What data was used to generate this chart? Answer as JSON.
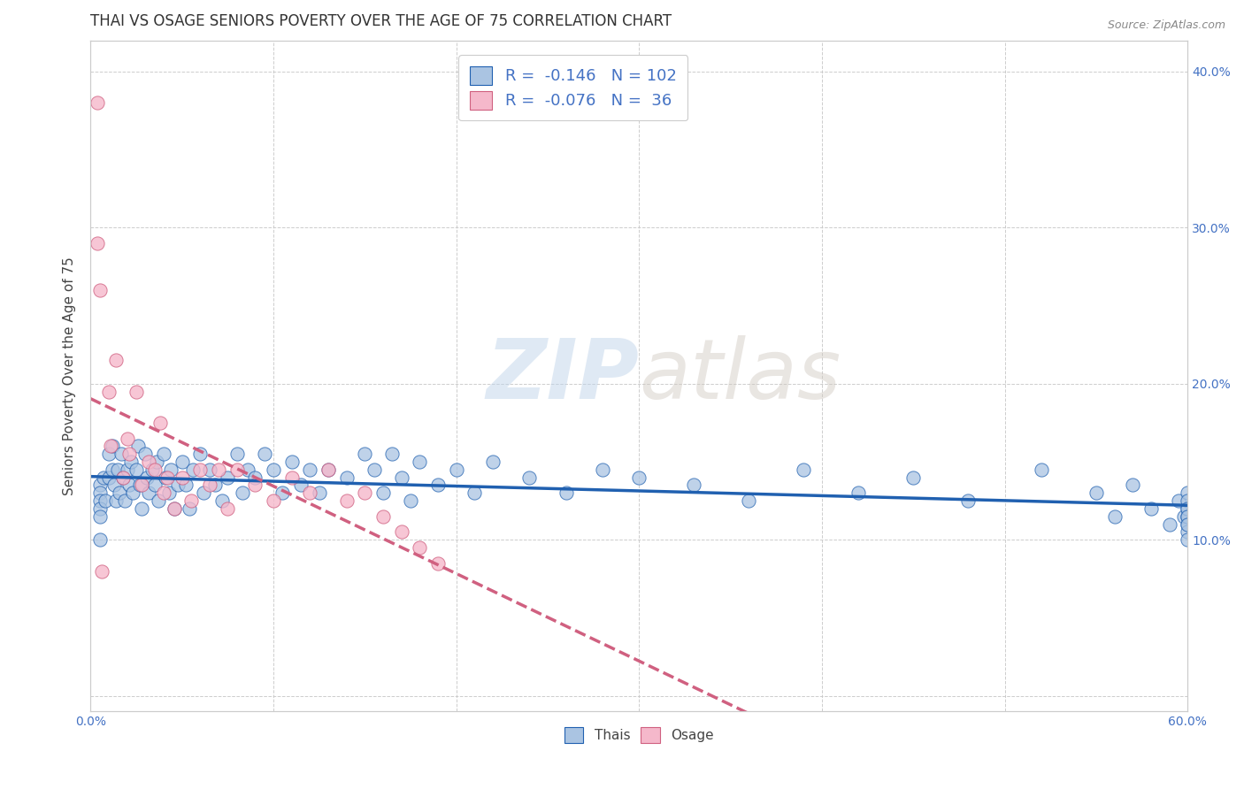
{
  "title": "THAI VS OSAGE SENIORS POVERTY OVER THE AGE OF 75 CORRELATION CHART",
  "source": "Source: ZipAtlas.com",
  "ylabel": "Seniors Poverty Over the Age of 75",
  "xlabel": "",
  "xlim": [
    0.0,
    0.6
  ],
  "ylim": [
    -0.01,
    0.42
  ],
  "xticks": [
    0.0,
    0.1,
    0.2,
    0.3,
    0.4,
    0.5,
    0.6
  ],
  "yticks": [
    0.0,
    0.1,
    0.2,
    0.3,
    0.4
  ],
  "xtick_labels": [
    "0.0%",
    "",
    "",
    "",
    "",
    "",
    "60.0%"
  ],
  "right_ytick_labels": [
    "10.0%",
    "20.0%",
    "30.0%",
    "40.0%"
  ],
  "right_yticks": [
    0.1,
    0.2,
    0.3,
    0.4
  ],
  "thai_R": "-0.146",
  "thai_N": "102",
  "osage_R": "-0.076",
  "osage_N": "36",
  "thai_color": "#aac4e2",
  "osage_color": "#f5b8cb",
  "thai_line_color": "#2060b0",
  "osage_line_color": "#d06080",
  "legend_label_thai": "Thais",
  "legend_label_osage": "Osage",
  "watermark_zip": "ZIP",
  "watermark_atlas": "atlas",
  "background_color": "#ffffff",
  "grid_color": "#c8c8c8",
  "title_fontsize": 12,
  "label_fontsize": 11,
  "tick_fontsize": 10,
  "thai_x": [
    0.005,
    0.005,
    0.005,
    0.005,
    0.005,
    0.005,
    0.007,
    0.008,
    0.01,
    0.01,
    0.012,
    0.012,
    0.013,
    0.014,
    0.015,
    0.016,
    0.017,
    0.018,
    0.019,
    0.02,
    0.021,
    0.022,
    0.023,
    0.025,
    0.026,
    0.027,
    0.028,
    0.03,
    0.031,
    0.032,
    0.034,
    0.035,
    0.036,
    0.037,
    0.04,
    0.041,
    0.043,
    0.044,
    0.046,
    0.048,
    0.05,
    0.052,
    0.054,
    0.056,
    0.06,
    0.062,
    0.065,
    0.068,
    0.072,
    0.075,
    0.08,
    0.083,
    0.086,
    0.09,
    0.095,
    0.1,
    0.105,
    0.11,
    0.115,
    0.12,
    0.125,
    0.13,
    0.14,
    0.15,
    0.155,
    0.16,
    0.165,
    0.17,
    0.175,
    0.18,
    0.19,
    0.2,
    0.21,
    0.22,
    0.24,
    0.26,
    0.28,
    0.3,
    0.33,
    0.36,
    0.39,
    0.42,
    0.45,
    0.48,
    0.52,
    0.55,
    0.56,
    0.57,
    0.58,
    0.59,
    0.595,
    0.598,
    0.6,
    0.6,
    0.6,
    0.6,
    0.6,
    0.6,
    0.6,
    0.6,
    0.6,
    0.6
  ],
  "thai_y": [
    0.135,
    0.13,
    0.125,
    0.12,
    0.115,
    0.1,
    0.14,
    0.125,
    0.155,
    0.14,
    0.16,
    0.145,
    0.135,
    0.125,
    0.145,
    0.13,
    0.155,
    0.14,
    0.125,
    0.145,
    0.135,
    0.15,
    0.13,
    0.145,
    0.16,
    0.135,
    0.12,
    0.155,
    0.14,
    0.13,
    0.145,
    0.135,
    0.15,
    0.125,
    0.155,
    0.14,
    0.13,
    0.145,
    0.12,
    0.135,
    0.15,
    0.135,
    0.12,
    0.145,
    0.155,
    0.13,
    0.145,
    0.135,
    0.125,
    0.14,
    0.155,
    0.13,
    0.145,
    0.14,
    0.155,
    0.145,
    0.13,
    0.15,
    0.135,
    0.145,
    0.13,
    0.145,
    0.14,
    0.155,
    0.145,
    0.13,
    0.155,
    0.14,
    0.125,
    0.15,
    0.135,
    0.145,
    0.13,
    0.15,
    0.14,
    0.13,
    0.145,
    0.14,
    0.135,
    0.125,
    0.145,
    0.13,
    0.14,
    0.125,
    0.145,
    0.13,
    0.115,
    0.135,
    0.12,
    0.11,
    0.125,
    0.115,
    0.13,
    0.12,
    0.115,
    0.125,
    0.11,
    0.12,
    0.115,
    0.105,
    0.11,
    0.1
  ],
  "osage_x": [
    0.004,
    0.004,
    0.005,
    0.006,
    0.01,
    0.011,
    0.014,
    0.018,
    0.02,
    0.021,
    0.025,
    0.028,
    0.032,
    0.035,
    0.038,
    0.04,
    0.042,
    0.046,
    0.05,
    0.055,
    0.06,
    0.065,
    0.07,
    0.075,
    0.08,
    0.09,
    0.1,
    0.11,
    0.12,
    0.13,
    0.14,
    0.15,
    0.16,
    0.17,
    0.18,
    0.19
  ],
  "osage_y": [
    0.38,
    0.29,
    0.26,
    0.08,
    0.195,
    0.16,
    0.215,
    0.14,
    0.165,
    0.155,
    0.195,
    0.135,
    0.15,
    0.145,
    0.175,
    0.13,
    0.14,
    0.12,
    0.14,
    0.125,
    0.145,
    0.135,
    0.145,
    0.12,
    0.145,
    0.135,
    0.125,
    0.14,
    0.13,
    0.145,
    0.125,
    0.13,
    0.115,
    0.105,
    0.095,
    0.085
  ]
}
